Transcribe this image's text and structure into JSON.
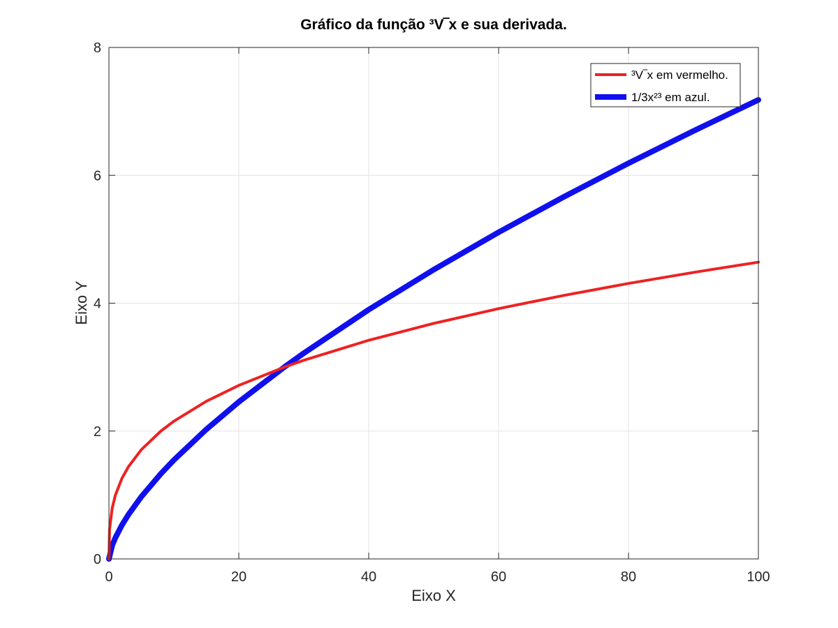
{
  "chart_data": {
    "type": "line",
    "title": "Gráfico da função ³V‾x e sua derivada.",
    "xlabel": "Eixo X",
    "ylabel": "Eixo Y",
    "xlim": [
      0,
      100
    ],
    "ylim": [
      0,
      8
    ],
    "xticks": [
      0,
      20,
      40,
      60,
      80,
      100
    ],
    "yticks": [
      0,
      2,
      4,
      6,
      8
    ],
    "xtick_labels": [
      "0",
      "20",
      "40",
      "60",
      "80",
      "100"
    ],
    "ytick_labels": [
      "0",
      "2",
      "4",
      "6",
      "8"
    ],
    "grid": true,
    "legend_position": "top-right",
    "series": [
      {
        "name": "³V‾x em vermelho.",
        "color": "#ee2222",
        "x": [
          0,
          0.1,
          0.5,
          1,
          2,
          3,
          5,
          8,
          10,
          15,
          20,
          27,
          30,
          40,
          50,
          60,
          70,
          80,
          90,
          100
        ],
        "y": [
          0,
          0.464,
          0.794,
          1,
          1.26,
          1.442,
          1.71,
          2,
          2.154,
          2.466,
          2.714,
          3,
          3.107,
          3.42,
          3.684,
          3.915,
          4.121,
          4.309,
          4.481,
          4.642
        ]
      },
      {
        "name": "1/3x²³ em azul.",
        "color": "#1010ee",
        "x": [
          0,
          0.5,
          1,
          2,
          3,
          5,
          8,
          10,
          15,
          20,
          27,
          30,
          40,
          50,
          60,
          70,
          80,
          90,
          100
        ],
        "y": [
          0,
          0.21,
          0.333,
          0.529,
          0.693,
          0.975,
          1.333,
          1.547,
          2.027,
          2.456,
          3,
          3.218,
          3.899,
          4.524,
          5.109,
          5.661,
          6.189,
          6.693,
          7.18
        ]
      }
    ]
  }
}
